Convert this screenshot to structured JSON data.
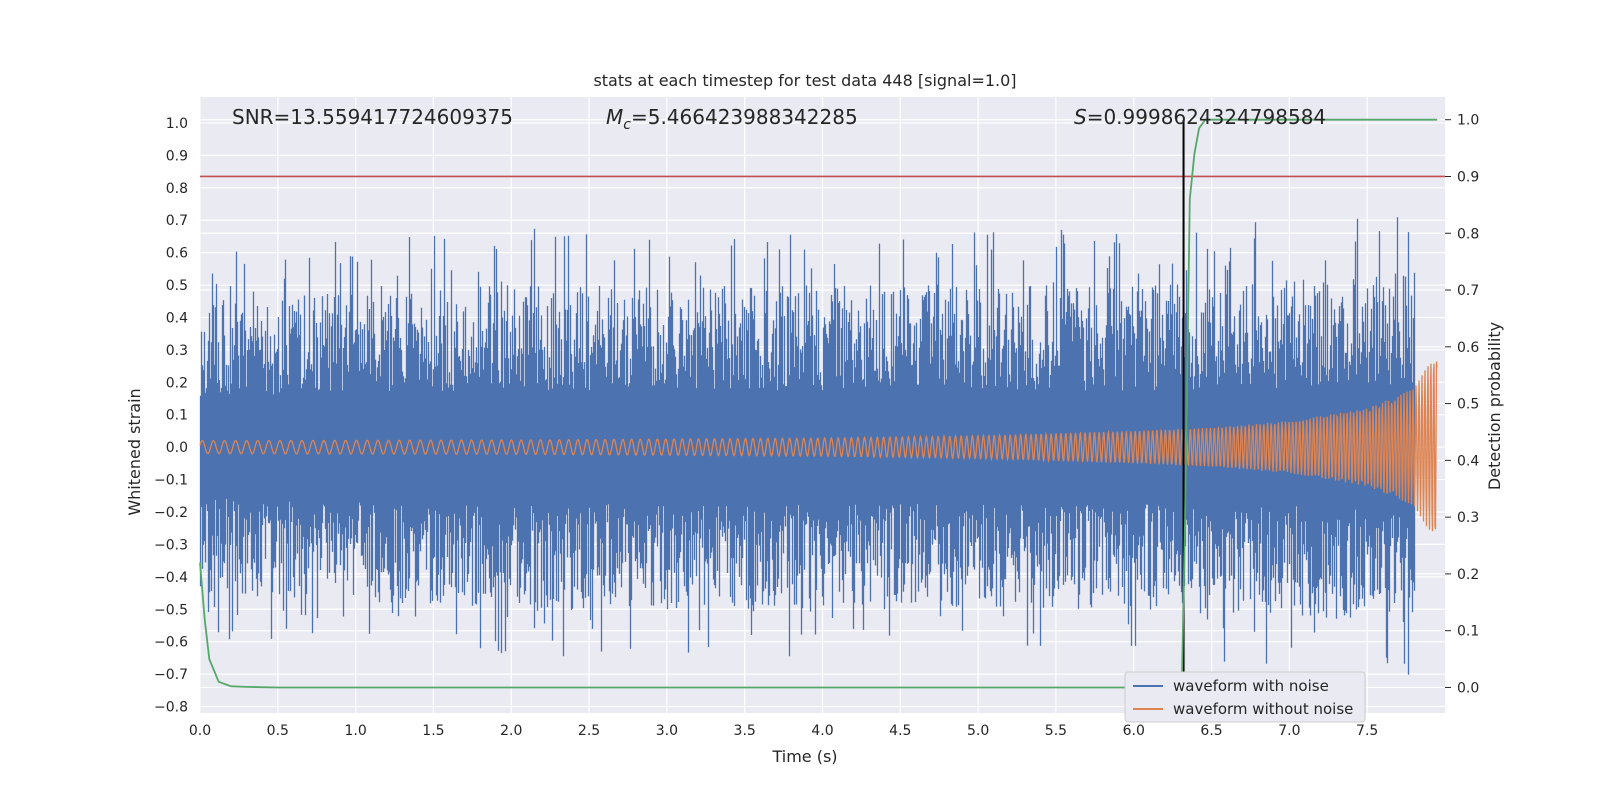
{
  "chart_data": {
    "type": "line",
    "title": "stats at each timestep for test data 448 [signal=1.0]",
    "xlabel": "Time (s)",
    "ylabel_left": "Whitened strain",
    "ylabel_right": "Detection probability",
    "xlim": [
      0.0,
      8.0
    ],
    "ylim_left": [
      -0.82,
      1.08
    ],
    "ylim_right": [
      -0.045,
      1.04
    ],
    "x_ticks": [
      "0.0",
      "0.5",
      "1.0",
      "1.5",
      "2.0",
      "2.5",
      "3.0",
      "3.5",
      "4.0",
      "4.5",
      "5.0",
      "5.5",
      "6.0",
      "6.5",
      "7.0",
      "7.5"
    ],
    "x_tick_values": [
      0,
      0.5,
      1,
      1.5,
      2,
      2.5,
      3,
      3.5,
      4,
      4.5,
      5,
      5.5,
      6,
      6.5,
      7,
      7.5
    ],
    "y_ticks_left": [
      "1.0",
      "0.9",
      "0.8",
      "0.7",
      "0.6",
      "0.5",
      "0.4",
      "0.3",
      "0.2",
      "0.1",
      "0.0",
      "−0.1",
      "−0.2",
      "−0.3",
      "−0.4",
      "−0.5",
      "−0.6",
      "−0.7",
      "−0.8"
    ],
    "y_tick_values_left": [
      1.0,
      0.9,
      0.8,
      0.7,
      0.6,
      0.5,
      0.4,
      0.3,
      0.2,
      0.1,
      0.0,
      -0.1,
      -0.2,
      -0.3,
      -0.4,
      -0.5,
      -0.6,
      -0.7,
      -0.8
    ],
    "y_ticks_right": [
      "1.0",
      "0.9",
      "0.8",
      "0.7",
      "0.6",
      "0.5",
      "0.4",
      "0.3",
      "0.2",
      "0.1",
      "0.0"
    ],
    "y_tick_values_right": [
      1.0,
      0.9,
      0.8,
      0.7,
      0.6,
      0.5,
      0.4,
      0.3,
      0.2,
      0.1,
      0.0
    ],
    "annotations": {
      "snr": "SNR=13.559417724609375",
      "mc": "=5.466423988342285",
      "s": "=0.9998624324798584"
    },
    "legend": [
      "waveform with noise",
      "waveform without noise"
    ],
    "legend_position": "bottom-right",
    "threshold_right": 0.9,
    "detection_time": 6.32,
    "detection_probability": {
      "x": [
        0,
        0.03,
        0.06,
        0.12,
        0.2,
        0.3,
        0.5,
        1,
        2,
        3,
        4,
        5,
        6,
        6.28,
        6.31,
        6.33,
        6.36,
        6.39,
        6.42,
        6.46,
        6.5,
        7,
        7.5,
        7.95
      ],
      "y": [
        0.22,
        0.12,
        0.05,
        0.01,
        0.002,
        0.001,
        0.0,
        0.0,
        0.0,
        0.0,
        0.0,
        0.0,
        0.0,
        0.0,
        0.02,
        0.3,
        0.86,
        0.94,
        0.985,
        1.0,
        1.0,
        1.0,
        1.0,
        1.0
      ]
    },
    "noise_envelope": {
      "x": [
        0,
        1,
        2,
        3,
        4,
        5,
        6,
        7,
        7.95
      ],
      "upper": [
        0.45,
        0.48,
        0.5,
        0.5,
        0.5,
        0.5,
        0.5,
        0.52,
        0.55
      ],
      "lower": [
        -0.45,
        -0.48,
        -0.5,
        -0.5,
        -0.5,
        -0.5,
        -0.5,
        -0.52,
        -0.55
      ]
    },
    "clean_envelope": {
      "x": [
        0,
        2,
        4,
        5,
        6,
        6.5,
        7,
        7.5,
        7.8,
        7.95
      ],
      "amplitude": [
        0.02,
        0.022,
        0.028,
        0.035,
        0.05,
        0.06,
        0.08,
        0.12,
        0.18,
        0.3
      ]
    },
    "series_colors": {
      "noise": "#4c72b0",
      "clean": "#dd8452",
      "probability": "#55a868",
      "threshold": "#c44e52",
      "detection_line": "#000000",
      "background": "#eaeaf2"
    }
  }
}
